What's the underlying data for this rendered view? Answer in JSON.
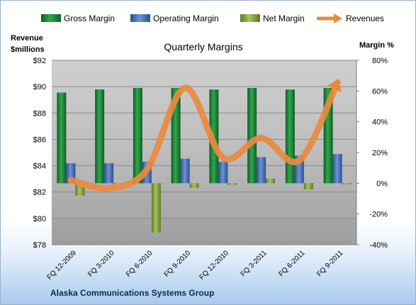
{
  "chart_data": {
    "type": "bar",
    "title": "Quarterly Margins",
    "categories": [
      "FQ 12-2009",
      "FQ 3-2010",
      "FQ 6-2010",
      "FQ 9-2010",
      "FQ 12-2010",
      "FQ 3-2011",
      "FQ 6-2011",
      "FQ 9-2011"
    ],
    "series": [
      {
        "name": "Gross Margin",
        "axis": "right",
        "kind": "bar",
        "color": "#1f8a3c",
        "values": [
          59,
          61,
          62,
          62,
          61,
          62,
          61,
          62
        ]
      },
      {
        "name": "Operating Margin",
        "axis": "right",
        "kind": "bar",
        "color": "#4a78c0",
        "values": [
          13,
          13,
          14,
          16,
          14,
          17,
          18,
          19
        ]
      },
      {
        "name": "Net Margin",
        "axis": "right",
        "kind": "bar",
        "color": "#8fb04a",
        "values": [
          -8,
          0,
          -32,
          -3,
          -1,
          3,
          -4,
          -0.5
        ]
      },
      {
        "name": "Revenues",
        "axis": "left",
        "kind": "line",
        "color": "#ea8a3e",
        "values": [
          82.9,
          82.3,
          83.7,
          89.9,
          84.6,
          86.1,
          84.4,
          90.3
        ]
      }
    ],
    "left_axis": {
      "title_line1": "Revenue",
      "title_line2": "$millions",
      "min": 78,
      "max": 92,
      "step": 2,
      "tick_labels": [
        "$78",
        "$80",
        "$82",
        "$84",
        "$86",
        "$88",
        "$90",
        "$92"
      ]
    },
    "right_axis": {
      "title": "Margin %",
      "min": -40,
      "max": 80,
      "step": 20,
      "tick_labels": [
        "-40%",
        "-20%",
        "0%",
        "20%",
        "40%",
        "60%",
        "80%"
      ]
    },
    "legend_position": "top",
    "grid": true
  },
  "footer": {
    "text": "Alaska Communications Systems Group"
  }
}
